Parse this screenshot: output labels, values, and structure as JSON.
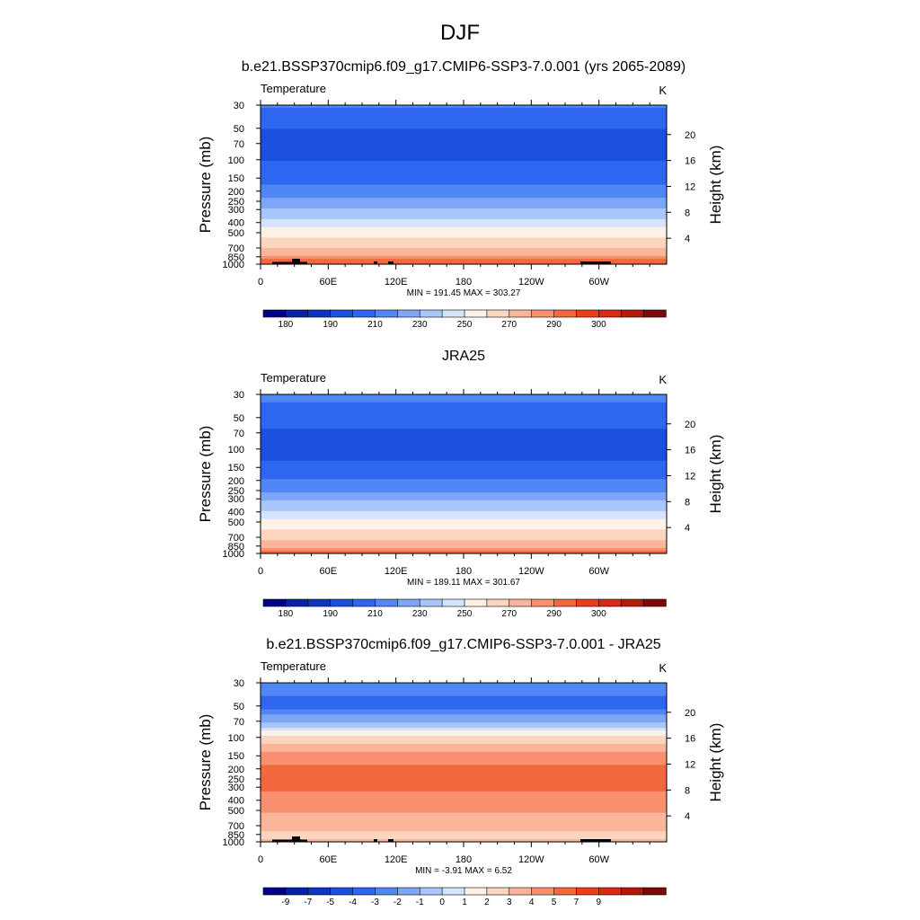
{
  "main_title": "DJF",
  "colors": {
    "temperature_levels": [
      "#00008b",
      "#0722a8",
      "#0b35c2",
      "#1a4fdf",
      "#2f66ef",
      "#5087f5",
      "#7ea6f7",
      "#a9c6fa",
      "#d3e4fc",
      "#fdf0e6",
      "#fcd5c0",
      "#fbb59a",
      "#f88f6f",
      "#f3683f",
      "#ec3e1a",
      "#d92912",
      "#b31a0c",
      "#7d0909"
    ],
    "difference_levels": [
      "#00008b",
      "#0722a8",
      "#0b35c2",
      "#1a4fdf",
      "#2f66ef",
      "#5087f5",
      "#7ea6f7",
      "#a9c6fa",
      "#d3e4fc",
      "#fdf0e6",
      "#fcd5c0",
      "#fbb59a",
      "#f88f6f",
      "#f3683f",
      "#ec3e1a",
      "#d92912",
      "#b31a0c",
      "#7d0909"
    ],
    "topography": "#000000"
  },
  "chart_data": [
    {
      "type": "heatmap",
      "title": "b.e21.BSSP370cmip6.f09_g17.CMIP6-SSP3-7.0.001 (yrs 2065-2089)",
      "left_label": "Temperature",
      "right_label": "K",
      "ylabel": "Pressure (mb)",
      "ylabel_right": "Height (km)",
      "x_ticks": [
        "0",
        "60E",
        "120E",
        "180",
        "120W",
        "60W"
      ],
      "y_ticks": [
        "30",
        "50",
        "70",
        "100",
        "150",
        "200",
        "250",
        "300",
        "400",
        "500",
        "700",
        "850",
        "1000"
      ],
      "y_ticks_right": [
        "20",
        "16",
        "12",
        "8",
        "4"
      ],
      "stats_text": "MIN = 191.45  MAX = 303.27",
      "min": 191.45,
      "max": 303.27,
      "colorbar_labels": [
        "180",
        "190",
        "210",
        "230",
        "250",
        "270",
        "290",
        "300"
      ],
      "profile": [
        {
          "p": 30,
          "t": 212
        },
        {
          "p": 50,
          "t": 200
        },
        {
          "p": 70,
          "t": 198
        },
        {
          "p": 100,
          "t": 199
        },
        {
          "p": 150,
          "t": 207
        },
        {
          "p": 200,
          "t": 214
        },
        {
          "p": 250,
          "t": 223
        },
        {
          "p": 300,
          "t": 232
        },
        {
          "p": 400,
          "t": 244
        },
        {
          "p": 500,
          "t": 255
        },
        {
          "p": 700,
          "t": 270
        },
        {
          "p": 850,
          "t": 281
        },
        {
          "p": 1000,
          "t": 291
        }
      ]
    },
    {
      "type": "heatmap",
      "title": "JRA25",
      "left_label": "Temperature",
      "right_label": "K",
      "ylabel": "Pressure (mb)",
      "ylabel_right": "Height (km)",
      "x_ticks": [
        "0",
        "60E",
        "120E",
        "180",
        "120W",
        "60W"
      ],
      "y_ticks": [
        "30",
        "50",
        "70",
        "100",
        "150",
        "200",
        "250",
        "300",
        "400",
        "500",
        "700",
        "850",
        "1000"
      ],
      "y_ticks_right": [
        "20",
        "16",
        "12",
        "8",
        "4"
      ],
      "stats_text": "MIN = 189.11  MAX = 301.67",
      "min": 189.11,
      "max": 301.67,
      "colorbar_labels": [
        "180",
        "190",
        "210",
        "230",
        "250",
        "270",
        "290",
        "300"
      ],
      "profile": [
        {
          "p": 30,
          "t": 214
        },
        {
          "p": 50,
          "t": 203
        },
        {
          "p": 70,
          "t": 199
        },
        {
          "p": 100,
          "t": 196
        },
        {
          "p": 150,
          "t": 203
        },
        {
          "p": 200,
          "t": 210
        },
        {
          "p": 250,
          "t": 219
        },
        {
          "p": 300,
          "t": 228
        },
        {
          "p": 400,
          "t": 241
        },
        {
          "p": 500,
          "t": 252
        },
        {
          "p": 700,
          "t": 268
        },
        {
          "p": 850,
          "t": 278
        },
        {
          "p": 1000,
          "t": 288
        }
      ]
    },
    {
      "type": "heatmap",
      "title": "b.e21.BSSP370cmip6.f09_g17.CMIP6-SSP3-7.0.001 - JRA25",
      "left_label": "Temperature",
      "right_label": "K",
      "ylabel": "Pressure (mb)",
      "ylabel_right": "Height (km)",
      "x_ticks": [
        "0",
        "60E",
        "120E",
        "180",
        "120W",
        "60W"
      ],
      "y_ticks": [
        "30",
        "50",
        "70",
        "100",
        "150",
        "200",
        "250",
        "300",
        "400",
        "500",
        "700",
        "850",
        "1000"
      ],
      "y_ticks_right": [
        "20",
        "16",
        "12",
        "8",
        "4"
      ],
      "stats_text": "MIN =  -3.91  MAX =   6.52",
      "min": -3.91,
      "max": 6.52,
      "colorbar_labels": [
        "-9",
        "-7",
        "-5",
        "-4",
        "-3",
        "-2",
        "-1",
        "0",
        "1",
        "2",
        "3",
        "4",
        "5",
        "7",
        "9"
      ],
      "profile": [
        {
          "p": 30,
          "t": -2.6
        },
        {
          "p": 50,
          "t": -3.3
        },
        {
          "p": 70,
          "t": -1.2
        },
        {
          "p": 100,
          "t": 2.2
        },
        {
          "p": 150,
          "t": 4.6
        },
        {
          "p": 200,
          "t": 5.2
        },
        {
          "p": 250,
          "t": 5.3
        },
        {
          "p": 300,
          "t": 5.2
        },
        {
          "p": 400,
          "t": 4.5
        },
        {
          "p": 500,
          "t": 4.1
        },
        {
          "p": 700,
          "t": 3.5
        },
        {
          "p": 850,
          "t": 2.6
        },
        {
          "p": 1000,
          "t": 3.2
        }
      ]
    }
  ]
}
